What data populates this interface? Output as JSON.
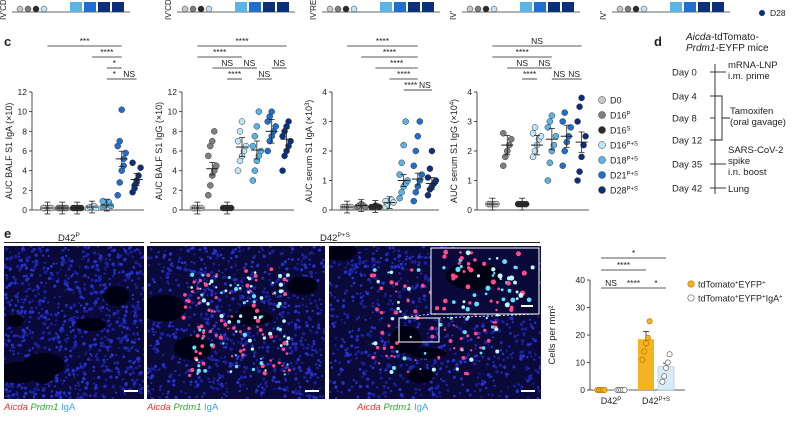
{
  "top_strip": {
    "labels": [
      "IV'CD",
      "IV'CD",
      "IV'RE",
      "IV'",
      "IV'"
    ],
    "legend_fragment": "D28"
  },
  "panel_c": {
    "letter": "c",
    "groups": [
      "D0",
      "D16P",
      "D16S",
      "D16P+S",
      "D18P+S",
      "D21P+S",
      "D28P+S"
    ],
    "group_labels": [
      {
        "base": "D0",
        "sup": ""
      },
      {
        "base": "D16",
        "sup": "P"
      },
      {
        "base": "D16",
        "sup": "S"
      },
      {
        "base": "D16",
        "sup": "P+S"
      },
      {
        "base": "D18",
        "sup": "P+S"
      },
      {
        "base": "D21",
        "sup": "P+S"
      },
      {
        "base": "D28",
        "sup": "P+S"
      }
    ],
    "colors": [
      "#c8c8c8",
      "#7f7f7f",
      "#2b2b2b",
      "#bfe6f7",
      "#5ab4e6",
      "#1f6fd1",
      "#0b2f7a"
    ],
    "charts": [
      {
        "ylabel": "AUC BALF S1 IgA (×10)",
        "ylabel_parts": {
          "base": "AUC BALF S1 IgA (×10)",
          "sup": ""
        },
        "ylim": [
          0,
          12
        ],
        "ticks": [
          0,
          2,
          4,
          6,
          8,
          10,
          12
        ],
        "means": [
          0.2,
          0.2,
          0.2,
          0.3,
          0.5,
          5.2,
          3.1
        ],
        "points": [
          [
            0.2,
            0.2,
            0.2,
            0.2,
            0.2,
            0.2
          ],
          [
            0.2,
            0.2,
            0.2,
            0.2,
            0.2
          ],
          [
            0.2,
            0.2,
            0.2,
            0.2,
            0.2
          ],
          [
            0.2,
            0.3,
            0.3,
            0.4,
            0.2
          ],
          [
            0.3,
            0.5,
            0.6,
            0.8,
            0.4,
            0.9
          ],
          [
            1.5,
            2.8,
            4.0,
            5.2,
            5.8,
            6.5,
            7.0,
            10.2,
            4.5
          ],
          [
            1.8,
            2.2,
            2.8,
            3.5,
            4.3,
            4.8,
            2.5,
            3.0
          ]
        ],
        "brackets": [
          {
            "from": 0,
            "to": 5,
            "label": "***",
            "level": 0
          },
          {
            "from": 3,
            "to": 5,
            "label": "****",
            "level": 1
          },
          {
            "from": 4,
            "to": 5,
            "label": "*",
            "level": 2
          },
          {
            "from": 4,
            "to": 5,
            "label": "*",
            "level": 3
          },
          {
            "from": 5,
            "to": 6,
            "label": "NS",
            "level": 3
          }
        ]
      },
      {
        "ylabel": "AUC BALF S1 IgG (×10)",
        "ylabel_parts": {
          "base": "AUC BALF S1 IgG (×10)",
          "sup": ""
        },
        "ylim": [
          0,
          12
        ],
        "ticks": [
          0,
          2,
          4,
          6,
          8,
          10,
          12
        ],
        "means": [
          0.2,
          4.2,
          0.2,
          6.4,
          6.1,
          8.0,
          7.2
        ],
        "points": [
          [
            0.2,
            0.2,
            0.2,
            0.2,
            0.2
          ],
          [
            1.5,
            2.5,
            3.5,
            4.0,
            4.5,
            5.5,
            6.5,
            7.0,
            8.0
          ],
          [
            0.2,
            0.2,
            0.2,
            0.2,
            0.2
          ],
          [
            4.0,
            5.0,
            5.5,
            6.0,
            6.5,
            7.0,
            8.0,
            9.0
          ],
          [
            3.0,
            4.0,
            5.0,
            5.5,
            6.0,
            6.5,
            7.5,
            8.5,
            10.0
          ],
          [
            6.0,
            7.0,
            7.5,
            8.0,
            8.5,
            9.0,
            9.5,
            10.0
          ],
          [
            4.0,
            5.5,
            6.0,
            6.5,
            7.0,
            7.5,
            8.0,
            8.5,
            9.0
          ]
        ],
        "brackets": [
          {
            "from": 0,
            "to": 6,
            "label": "****",
            "level": 0
          },
          {
            "from": 0,
            "to": 3,
            "label": "****",
            "level": 1
          },
          {
            "from": 1,
            "to": 3,
            "label": "NS",
            "level": 2
          },
          {
            "from": 3,
            "to": 4,
            "label": "NS",
            "level": 2
          },
          {
            "from": 5,
            "to": 6,
            "label": "NS",
            "level": 2
          },
          {
            "from": 2,
            "to": 3,
            "label": "****",
            "level": 3
          },
          {
            "from": 4,
            "to": 5,
            "label": "NS",
            "level": 3
          }
        ]
      },
      {
        "ylabel": "AUC serum S1 IgA (×10³)",
        "ylabel_parts": {
          "base": "AUC serum S1 IgA (×10",
          "sup": "3",
          "tail": ")"
        },
        "ylim": [
          0,
          4
        ],
        "ticks": [
          0,
          1,
          2,
          3,
          4
        ],
        "means": [
          0.1,
          0.15,
          0.12,
          0.25,
          1.0,
          1.05,
          0.9
        ],
        "points": [
          [
            0.1,
            0.1,
            0.1,
            0.1,
            0.1
          ],
          [
            0.1,
            0.15,
            0.2,
            0.15,
            0.1
          ],
          [
            0.1,
            0.1,
            0.15,
            0.12,
            0.1
          ],
          [
            0.1,
            0.2,
            0.3,
            0.35,
            0.25,
            0.3
          ],
          [
            0.4,
            0.6,
            0.8,
            0.9,
            1.0,
            1.2,
            1.6,
            2.2,
            3.0
          ],
          [
            0.3,
            0.6,
            0.8,
            1.0,
            1.2,
            1.5,
            2.0,
            2.5,
            3.0
          ],
          [
            0.5,
            0.7,
            0.8,
            0.9,
            1.0,
            1.1,
            1.4,
            2.0
          ]
        ],
        "brackets": [
          {
            "from": 0,
            "to": 5,
            "label": "****",
            "level": 0
          },
          {
            "from": 1,
            "to": 5,
            "label": "****",
            "level": 1
          },
          {
            "from": 2,
            "to": 5,
            "label": "****",
            "level": 2
          },
          {
            "from": 3,
            "to": 5,
            "label": "****",
            "level": 3
          },
          {
            "from": 4,
            "to": 5,
            "label": "****",
            "level": 4
          },
          {
            "from": 5,
            "to": 6,
            "label": "NS",
            "level": 4
          }
        ]
      },
      {
        "ylabel": "AUC serum S1 IgG (×10⁴)",
        "ylabel_parts": {
          "base": "AUC serum S1 IgG (×10",
          "sup": "4",
          "tail": ")"
        },
        "ylim": [
          0,
          4
        ],
        "ticks": [
          0,
          1,
          2,
          3,
          4
        ],
        "means": [
          0.2,
          2.2,
          0.2,
          2.2,
          2.4,
          2.5,
          2.3
        ],
        "points": [
          [
            0.2,
            0.2,
            0.2,
            0.2,
            0.2
          ],
          [
            1.5,
            1.8,
            2.0,
            2.2,
            2.4,
            2.6
          ],
          [
            0.2,
            0.2,
            0.2,
            0.2,
            0.2
          ],
          [
            1.8,
            2.0,
            2.2,
            2.4,
            2.5,
            2.6,
            2.8
          ],
          [
            1.0,
            1.6,
            2.0,
            2.2,
            2.5,
            2.8,
            3.0,
            3.2
          ],
          [
            1.5,
            2.0,
            2.3,
            2.5,
            2.8,
            3.0,
            3.3
          ],
          [
            1.0,
            1.3,
            1.8,
            2.2,
            2.5,
            3.0,
            3.5,
            3.8
          ]
        ],
        "brackets": [
          {
            "from": 0,
            "to": 6,
            "label": "NS",
            "level": 0
          },
          {
            "from": 0,
            "to": 4,
            "label": "****",
            "level": 1
          },
          {
            "from": 1,
            "to": 3,
            "label": "NS",
            "level": 2
          },
          {
            "from": 3,
            "to": 4,
            "label": "NS",
            "level": 2
          },
          {
            "from": 2,
            "to": 3,
            "label": "****",
            "level": 3
          },
          {
            "from": 4,
            "to": 5,
            "label": "NS",
            "level": 3
          },
          {
            "from": 5,
            "to": 6,
            "label": "NS",
            "level": 3
          }
        ]
      }
    ]
  },
  "panel_d": {
    "letter": "d",
    "title_line1": "Aicda-tdTomato-",
    "title_line2": "Prdm1-EYFP mice",
    "days": [
      "Day 0",
      "Day 4",
      "Day 8",
      "Day 12",
      "Day 35",
      "Day 42"
    ],
    "events": [
      {
        "text1": "mRNA-LNP",
        "text2": "i.m. prime"
      },
      {
        "text1": "Tamoxifen",
        "text2": "(oral gavage)"
      },
      {
        "text1": "SARS-CoV-2",
        "text2": "spike",
        "text3": "i.n. boost"
      },
      {
        "text1": "Lung"
      }
    ]
  },
  "panel_e": {
    "letter": "e",
    "image_label_left": "D42",
    "image_label_left_sup": "P",
    "image_label_right": "D42",
    "image_label_right_sup": "P+S",
    "stain_labels": [
      "Aicda",
      "Prdm1",
      "IgA"
    ],
    "stain_colors": [
      "#ff3b3b",
      "#3bd13b",
      "#4fb6ff"
    ],
    "chart_data": {
      "type": "bar",
      "categories": [
        "D42P",
        "D42P+S"
      ],
      "category_labels": [
        {
          "base": "D42",
          "sup": "P"
        },
        {
          "base": "D42",
          "sup": "P+S"
        }
      ],
      "ylabel": "Cells per mm²",
      "ylim": [
        0,
        40
      ],
      "ticks": [
        0,
        10,
        20,
        30,
        40
      ],
      "series": [
        {
          "name": "tdTomato+EYFP+",
          "legend_base": "tdTomato",
          "legend_sup1": "+",
          "legend_mid": "EYFP",
          "legend_sup2": "+",
          "color": "#f5b324",
          "values": [
            0.2,
            18.5
          ],
          "points": [
            [
              0,
              0,
              0,
              0,
              0
            ],
            [
              11,
              14,
              17,
              19,
              25
            ]
          ]
        },
        {
          "name": "tdTomato+EYFP+IgA+",
          "legend_base": "tdTomato",
          "legend_sup1": "+",
          "legend_mid": "EYFP",
          "legend_sup2": "+",
          "legend_tail": "IgA",
          "legend_sup3": "+",
          "color": "#d7ecf8",
          "values": [
            0.2,
            8.5
          ],
          "points": [
            [
              0,
              0,
              0,
              0,
              0
            ],
            [
              3,
              5,
              8,
              10,
              13
            ]
          ]
        }
      ],
      "brackets": [
        {
          "label": "*",
          "from": 0,
          "to": 3,
          "level": 0
        },
        {
          "label": "****",
          "from": 0,
          "to": 2,
          "level": 1
        },
        {
          "label": "NS",
          "from": 0,
          "to": 1,
          "level": 2
        },
        {
          "label": "****",
          "from": 1,
          "to": 2,
          "level": 2
        },
        {
          "label": "*",
          "from": 2,
          "to": 3,
          "level": 2
        }
      ]
    }
  }
}
